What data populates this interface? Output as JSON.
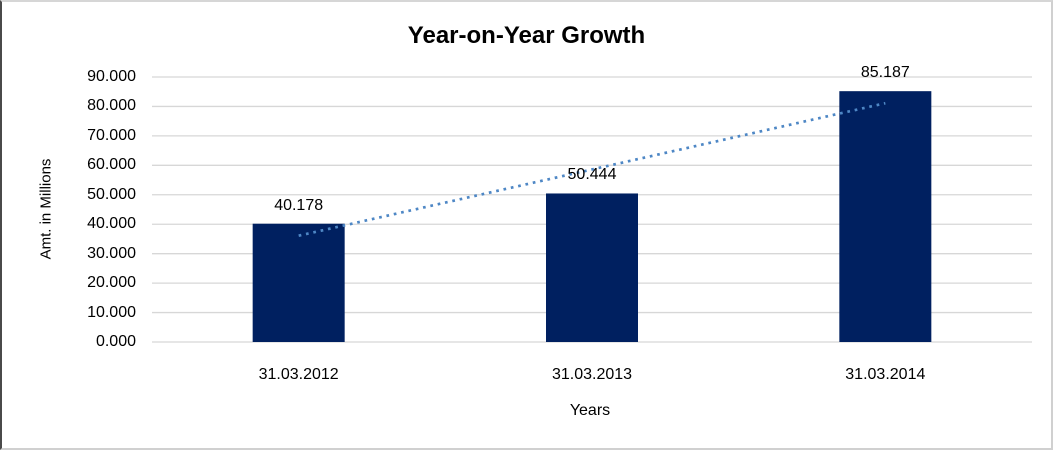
{
  "chart_data": {
    "type": "bar",
    "title": "Year-on-Year Growth",
    "xlabel": "Years",
    "ylabel": "Amt. in Millions",
    "categories": [
      "31.03.2012",
      "31.03.2013",
      "31.03.2014"
    ],
    "values": [
      40.178,
      50.444,
      85.187
    ],
    "data_labels": [
      "40.178",
      "50.444",
      "85.187"
    ],
    "ylim": [
      0,
      90
    ],
    "ytick_step": 10,
    "ytick_labels": [
      "0.000",
      "10.000",
      "20.000",
      "30.000",
      "40.000",
      "50.000",
      "60.000",
      "70.000",
      "80.000",
      "90.000"
    ],
    "grid": "horizontal",
    "legend": "none",
    "trendline": {
      "type": "linear",
      "style": "dotted",
      "start_value": 36.1,
      "end_value": 81.1
    },
    "colors": {
      "bar": "#002060",
      "trendline": "#4e87c5",
      "gridline": "#d7d7d7",
      "text": "#000000",
      "background": "#ffffff"
    }
  }
}
